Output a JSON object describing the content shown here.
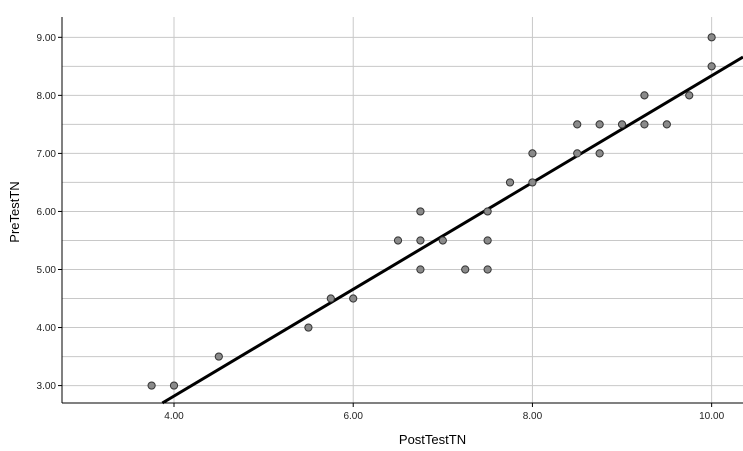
{
  "chart_data": {
    "type": "scatter",
    "title": "",
    "xlabel": "PostTestTN",
    "ylabel": "PreTestTN",
    "xlim": [
      2.75,
      10.35
    ],
    "ylim": [
      2.7,
      9.35
    ],
    "xticks": [
      "4.00",
      "6.00",
      "8.00",
      "10.00"
    ],
    "yticks": [
      "3.00",
      "4.00",
      "5.00",
      "6.00",
      "7.00",
      "8.00",
      "9.00"
    ],
    "grid": true,
    "points": [
      {
        "x": 3.75,
        "y": 3.0
      },
      {
        "x": 4.0,
        "y": 3.0
      },
      {
        "x": 4.5,
        "y": 3.5
      },
      {
        "x": 5.5,
        "y": 4.0
      },
      {
        "x": 5.75,
        "y": 4.5
      },
      {
        "x": 6.0,
        "y": 4.5
      },
      {
        "x": 6.5,
        "y": 5.5
      },
      {
        "x": 6.75,
        "y": 6.0
      },
      {
        "x": 6.75,
        "y": 5.5
      },
      {
        "x": 6.75,
        "y": 5.0
      },
      {
        "x": 7.0,
        "y": 5.5
      },
      {
        "x": 7.25,
        "y": 5.0
      },
      {
        "x": 7.5,
        "y": 6.0
      },
      {
        "x": 7.5,
        "y": 5.5
      },
      {
        "x": 7.5,
        "y": 5.0
      },
      {
        "x": 7.75,
        "y": 6.5
      },
      {
        "x": 8.0,
        "y": 7.0
      },
      {
        "x": 8.0,
        "y": 6.5
      },
      {
        "x": 8.5,
        "y": 7.5
      },
      {
        "x": 8.5,
        "y": 7.0
      },
      {
        "x": 8.75,
        "y": 7.5
      },
      {
        "x": 8.75,
        "y": 7.0
      },
      {
        "x": 9.0,
        "y": 7.5
      },
      {
        "x": 9.25,
        "y": 8.0
      },
      {
        "x": 9.25,
        "y": 7.5
      },
      {
        "x": 9.5,
        "y": 7.5
      },
      {
        "x": 9.75,
        "y": 8.0
      },
      {
        "x": 10.0,
        "y": 9.0
      },
      {
        "x": 10.0,
        "y": 8.5
      }
    ],
    "fit_line": {
      "x": [
        3.87,
        10.35
      ],
      "y": [
        2.7,
        8.66
      ]
    }
  }
}
